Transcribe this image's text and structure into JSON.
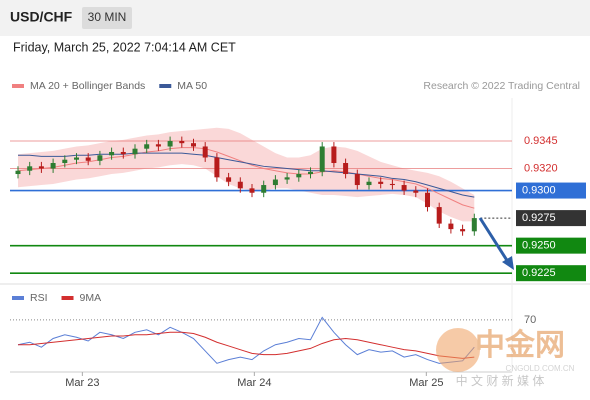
{
  "header": {
    "symbol": "USD/CHF",
    "interval": "30 MIN",
    "timestamp": "Friday, March 25, 2022 7:04:14 AM CET"
  },
  "watermark": {
    "brand": "中金网",
    "site": "CNGOLD.COM.CN",
    "slogan": "中 文 财 新 媒 体"
  },
  "chart_data": [
    {
      "type": "candlestick",
      "source": "Research © 2022 Trading Central",
      "ylim": [
        0.9217,
        0.9384
      ],
      "xticks": [
        {
          "value": 5.5,
          "label": "Mar 23"
        },
        {
          "value": 20.2,
          "label": "Mar 24"
        },
        {
          "value": 34.9,
          "label": "Mar 25"
        }
      ],
      "up_color": "#2e7d32",
      "down_color": "#b71c1c",
      "open": [
        0.9315,
        0.9318,
        0.9322,
        0.932,
        0.9325,
        0.9328,
        0.933,
        0.9327,
        0.9332,
        0.9335,
        0.9333,
        0.9338,
        0.9342,
        0.934,
        0.9345,
        0.9343,
        0.934,
        0.933,
        0.9312,
        0.9308,
        0.9302,
        0.9298,
        0.9305,
        0.931,
        0.9312,
        0.9315,
        0.9317,
        0.934,
        0.9325,
        0.9315,
        0.9305,
        0.9308,
        0.9306,
        0.9305,
        0.93,
        0.9298,
        0.9285,
        0.927,
        0.9265,
        0.9263
      ],
      "high": [
        0.9322,
        0.9326,
        0.9326,
        0.9329,
        0.9332,
        0.9334,
        0.9334,
        0.9336,
        0.9339,
        0.9339,
        0.9342,
        0.9346,
        0.9346,
        0.9349,
        0.9349,
        0.9347,
        0.9344,
        0.9334,
        0.9316,
        0.9312,
        0.9306,
        0.9309,
        0.9314,
        0.9316,
        0.9319,
        0.9321,
        0.9344,
        0.9344,
        0.9329,
        0.9319,
        0.9312,
        0.9312,
        0.931,
        0.9309,
        0.9304,
        0.9302,
        0.9289,
        0.9274,
        0.9269,
        0.9279
      ],
      "low": [
        0.9311,
        0.9314,
        0.9316,
        0.9316,
        0.9321,
        0.9324,
        0.9323,
        0.9323,
        0.9328,
        0.9329,
        0.9329,
        0.9334,
        0.9336,
        0.9336,
        0.9339,
        0.9336,
        0.9326,
        0.9308,
        0.9304,
        0.9298,
        0.9294,
        0.9294,
        0.9301,
        0.9306,
        0.9308,
        0.9311,
        0.9313,
        0.9321,
        0.9311,
        0.9301,
        0.9301,
        0.9302,
        0.9301,
        0.9296,
        0.9294,
        0.9281,
        0.9266,
        0.9261,
        0.9259,
        0.9259
      ],
      "close": [
        0.9318,
        0.9322,
        0.932,
        0.9325,
        0.9328,
        0.933,
        0.9327,
        0.9332,
        0.9335,
        0.9333,
        0.9338,
        0.9342,
        0.934,
        0.9345,
        0.9343,
        0.934,
        0.933,
        0.9312,
        0.9308,
        0.9302,
        0.9298,
        0.9305,
        0.931,
        0.9312,
        0.9315,
        0.9317,
        0.934,
        0.9325,
        0.9315,
        0.9305,
        0.9308,
        0.9306,
        0.9305,
        0.93,
        0.9298,
        0.9285,
        0.927,
        0.9265,
        0.9263,
        0.9275
      ],
      "series": [
        {
          "name": "MA 20 + Bollinger Bands",
          "color": "#f08080",
          "band_color": "#f8c8c8",
          "values": [
            0.9318,
            0.9319,
            0.932,
            0.9321,
            0.9323,
            0.9325,
            0.9326,
            0.9328,
            0.933,
            0.9331,
            0.9333,
            0.9335,
            0.9336,
            0.9338,
            0.9339,
            0.9339,
            0.9338,
            0.9335,
            0.9331,
            0.9327,
            0.9323,
            0.932,
            0.9318,
            0.9316,
            0.9315,
            0.9315,
            0.9317,
            0.9318,
            0.9317,
            0.9315,
            0.9313,
            0.9311,
            0.931,
            0.9308,
            0.9306,
            0.9302,
            0.9297,
            0.9292,
            0.9287,
            0.9284
          ],
          "upper": [
            0.9333,
            0.9334,
            0.9335,
            0.9336,
            0.9338,
            0.934,
            0.9341,
            0.9343,
            0.9345,
            0.9346,
            0.9348,
            0.935,
            0.9351,
            0.9353,
            0.9354,
            0.9355,
            0.9356,
            0.9357,
            0.9356,
            0.9352,
            0.9346,
            0.934,
            0.9334,
            0.933,
            0.933,
            0.9332,
            0.9338,
            0.934,
            0.9339,
            0.9336,
            0.9331,
            0.9326,
            0.9323,
            0.932,
            0.9318,
            0.9316,
            0.9313,
            0.9308,
            0.9302,
            0.9296
          ],
          "lower": [
            0.9303,
            0.9304,
            0.9305,
            0.9306,
            0.9308,
            0.931,
            0.9311,
            0.9313,
            0.9315,
            0.9316,
            0.9318,
            0.932,
            0.9321,
            0.9323,
            0.9324,
            0.9323,
            0.932,
            0.9313,
            0.9306,
            0.9302,
            0.93,
            0.93,
            0.9302,
            0.9302,
            0.93,
            0.9298,
            0.9296,
            0.9296,
            0.9295,
            0.9294,
            0.9295,
            0.9296,
            0.9297,
            0.9296,
            0.9294,
            0.9288,
            0.9281,
            0.9276,
            0.9272,
            0.9272
          ]
        },
        {
          "name": "MA 50",
          "color": "#3b5998",
          "values": [
            0.9332,
            0.9332,
            0.9331,
            0.9331,
            0.9331,
            0.9332,
            0.9332,
            0.9333,
            0.9333,
            0.9333,
            0.9334,
            0.9334,
            0.9334,
            0.9334,
            0.9334,
            0.9333,
            0.9332,
            0.933,
            0.9328,
            0.9326,
            0.9324,
            0.9322,
            0.9321,
            0.932,
            0.9319,
            0.9318,
            0.9318,
            0.9317,
            0.9316,
            0.9315,
            0.9314,
            0.9313,
            0.9311,
            0.931,
            0.9308,
            0.9305,
            0.9302,
            0.9299,
            0.9296,
            0.9294
          ]
        }
      ],
      "levels": [
        {
          "value": 0.9345,
          "label": "0.9345",
          "color": "#e57373",
          "boxed": false,
          "style": "solid"
        },
        {
          "value": 0.932,
          "label": "0.9320",
          "color": "#e57373",
          "boxed": false,
          "style": "solid"
        },
        {
          "value": 0.93,
          "label": "0.9300",
          "color": "#2f6fd6",
          "boxed": true,
          "style": "solid"
        },
        {
          "value": 0.9275,
          "label": "0.9275",
          "color": "#333333",
          "boxed": true,
          "style": "dotted"
        },
        {
          "value": 0.925,
          "label": "0.9250",
          "color": "#118811",
          "boxed": true,
          "style": "solid"
        },
        {
          "value": 0.9225,
          "label": "0.9225",
          "color": "#118811",
          "boxed": true,
          "style": "solid"
        }
      ]
    },
    {
      "type": "line",
      "ylim": [
        28,
        82
      ],
      "yticks": [
        70
      ],
      "series": [
        {
          "name": "RSI",
          "color": "#5b7fd6",
          "values": [
            50,
            52,
            48,
            55,
            58,
            56,
            53,
            60,
            58,
            55,
            60,
            62,
            58,
            64,
            60,
            55,
            45,
            35,
            38,
            40,
            38,
            45,
            50,
            52,
            55,
            54,
            72,
            60,
            50,
            42,
            46,
            44,
            45,
            40,
            42,
            38,
            35,
            36,
            37,
            48
          ]
        },
        {
          "name": "9MA",
          "color": "#d32f2f",
          "values": [
            50,
            50,
            51,
            52,
            53,
            54,
            55,
            56,
            57,
            57,
            58,
            58,
            59,
            60,
            60,
            59,
            56,
            52,
            49,
            46,
            43,
            42,
            42,
            43,
            45,
            47,
            51,
            54,
            55,
            54,
            52,
            50,
            48,
            46,
            45,
            43,
            41,
            40,
            39,
            40
          ]
        }
      ]
    }
  ]
}
